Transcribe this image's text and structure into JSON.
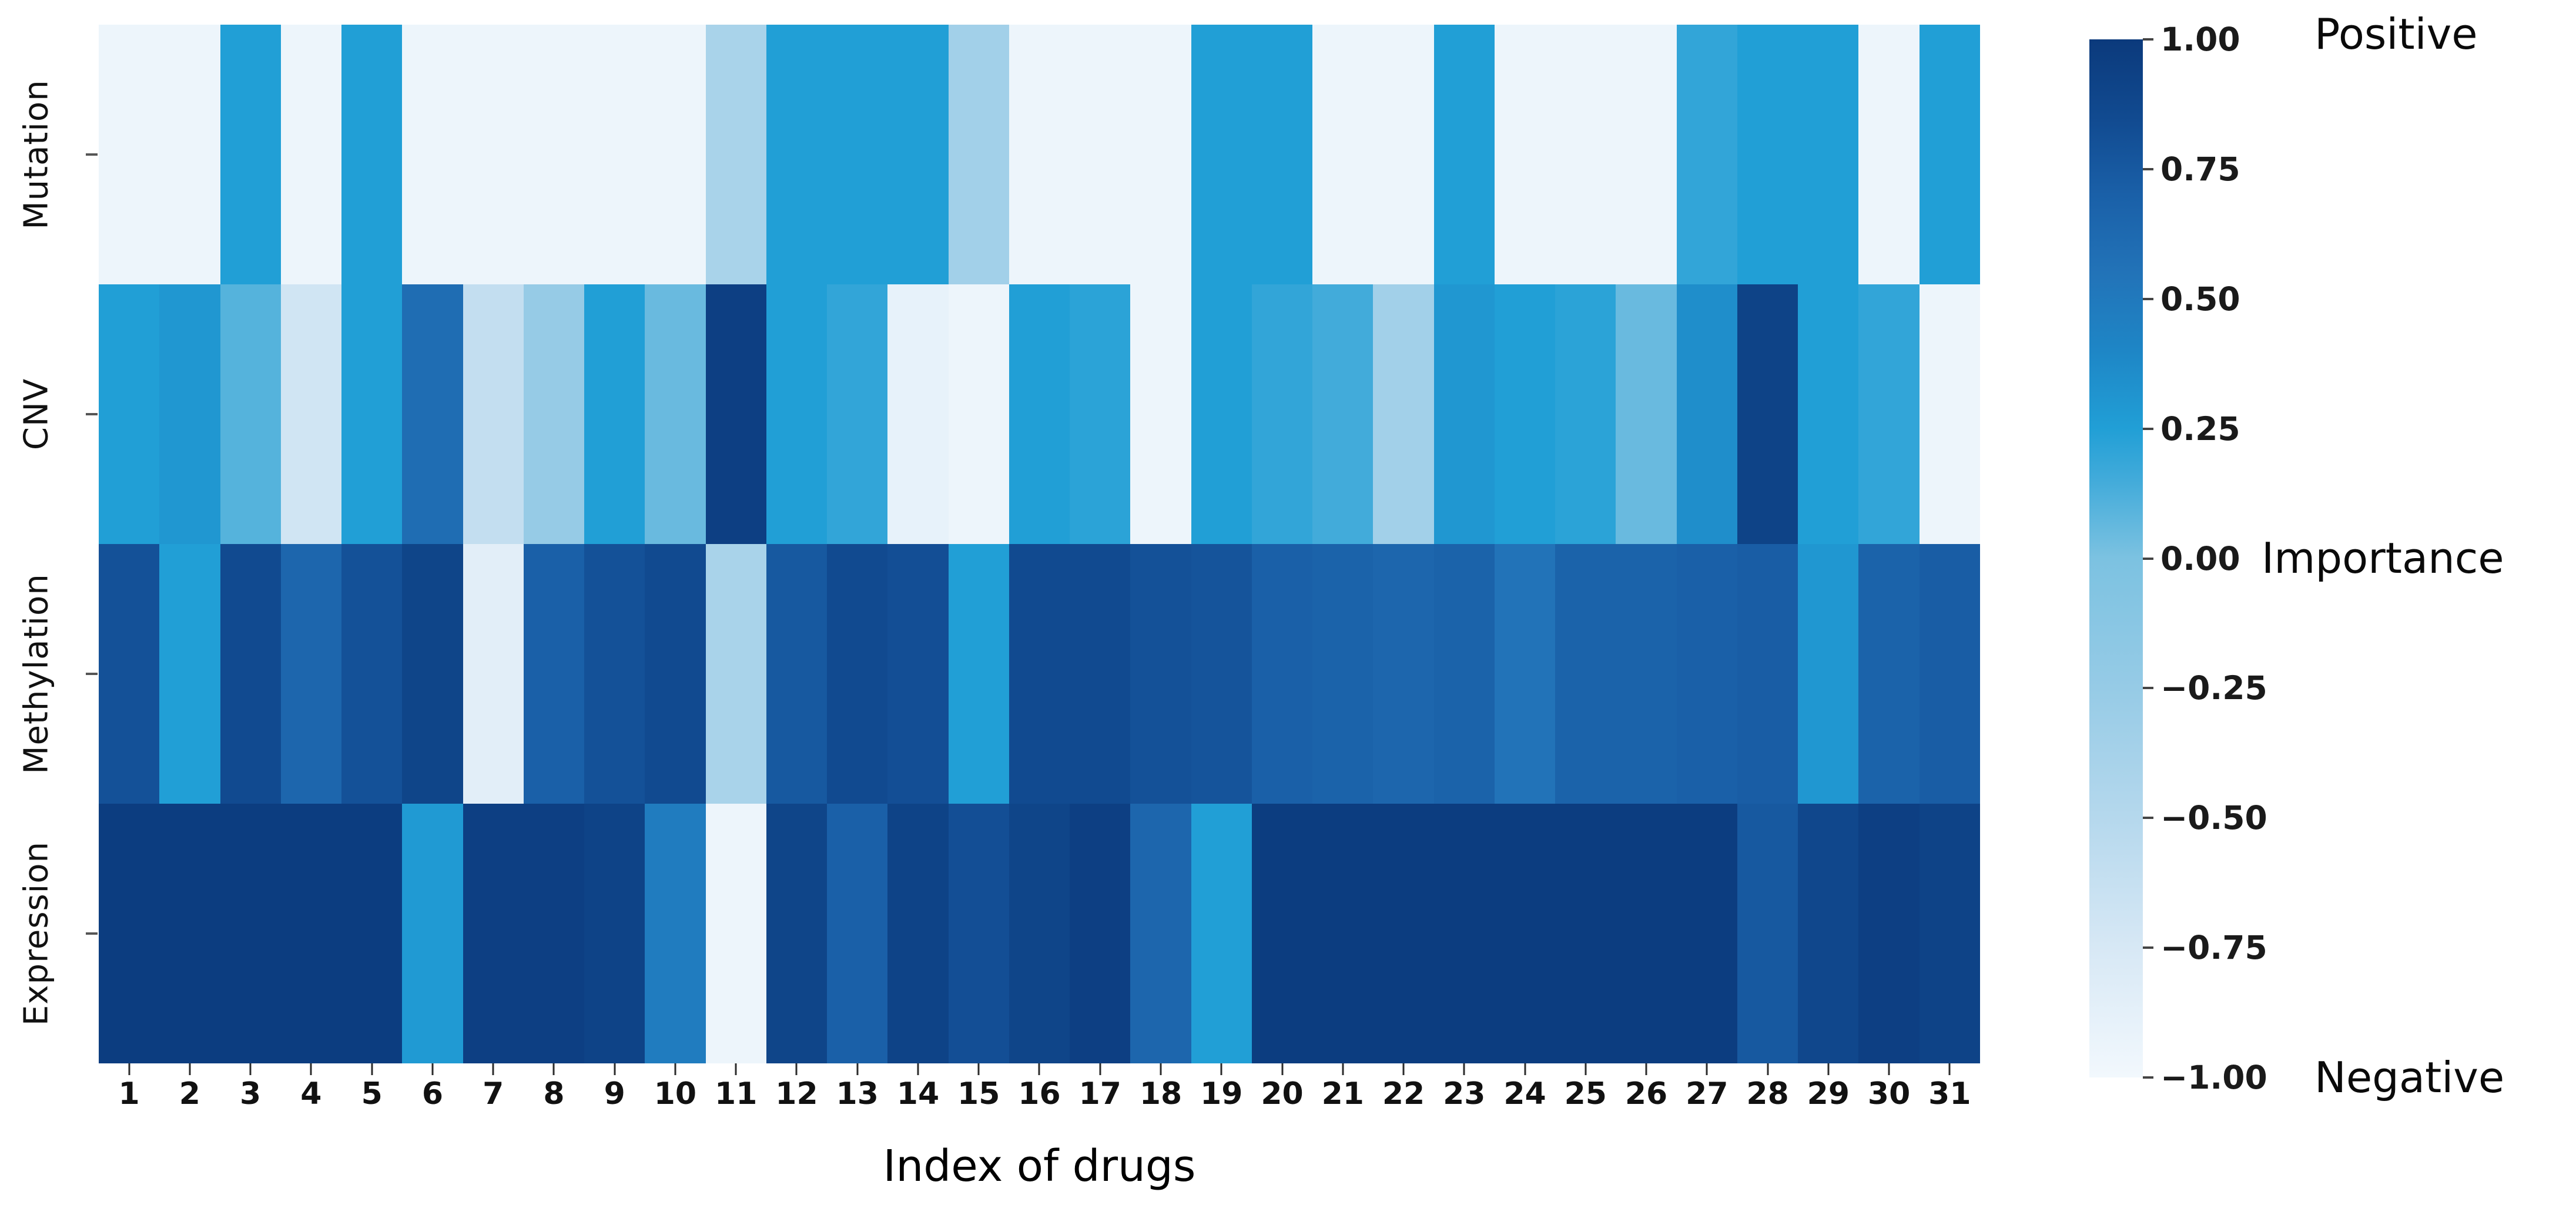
{
  "chart_data": {
    "type": "heatmap",
    "title": "",
    "xlabel": "Index of drugs",
    "ylabel": "",
    "columns": [
      "1",
      "2",
      "3",
      "4",
      "5",
      "6",
      "7",
      "8",
      "9",
      "10",
      "11",
      "12",
      "13",
      "14",
      "15",
      "16",
      "17",
      "18",
      "19",
      "20",
      "21",
      "22",
      "23",
      "24",
      "25",
      "26",
      "27",
      "28",
      "29",
      "30",
      "31"
    ],
    "rows": [
      "Mutation",
      "CNV",
      "Methylation",
      "Expression"
    ],
    "vmin": -1.0,
    "vmax": 1.0,
    "grid": false,
    "series": [
      {
        "name": "Mutation",
        "values": [
          -0.95,
          -0.95,
          0.25,
          -0.95,
          0.25,
          -0.95,
          -0.95,
          -0.95,
          -0.95,
          -0.95,
          -0.4,
          0.25,
          0.25,
          0.25,
          -0.35,
          -0.95,
          -0.95,
          -0.95,
          0.25,
          0.25,
          -0.95,
          -0.95,
          0.25,
          -0.95,
          -0.95,
          -0.95,
          0.2,
          0.25,
          0.25,
          -0.95,
          0.25
        ]
      },
      {
        "name": "CNV",
        "values": [
          0.25,
          0.3,
          0.1,
          -0.7,
          0.25,
          0.6,
          -0.6,
          -0.25,
          0.25,
          0.05,
          0.95,
          0.25,
          0.2,
          -0.9,
          -0.95,
          0.25,
          0.22,
          -0.95,
          0.25,
          0.2,
          0.15,
          -0.35,
          0.3,
          0.25,
          0.22,
          0.05,
          0.35,
          0.92,
          0.25,
          0.2,
          -0.95
        ]
      },
      {
        "name": "Methylation",
        "values": [
          0.8,
          0.25,
          0.85,
          0.65,
          0.8,
          0.9,
          -0.85,
          0.7,
          0.8,
          0.85,
          -0.4,
          0.75,
          0.85,
          0.82,
          0.25,
          0.85,
          0.85,
          0.8,
          0.78,
          0.7,
          0.68,
          0.65,
          0.68,
          0.55,
          0.68,
          0.68,
          0.7,
          0.72,
          0.3,
          0.68,
          0.72
        ]
      },
      {
        "name": "Expression",
        "values": [
          0.97,
          0.97,
          0.97,
          0.97,
          0.97,
          0.28,
          0.95,
          0.95,
          0.92,
          0.48,
          -0.95,
          0.9,
          0.7,
          0.92,
          0.82,
          0.9,
          0.95,
          0.65,
          0.25,
          0.97,
          0.97,
          0.97,
          0.97,
          0.97,
          0.97,
          0.97,
          0.97,
          0.75,
          0.88,
          0.95,
          0.92
        ]
      }
    ],
    "colormap_anchors": [
      [
        -1.0,
        "#f2f8fd"
      ],
      [
        -0.75,
        "#d7e8f5"
      ],
      [
        -0.5,
        "#b5d8ed"
      ],
      [
        -0.25,
        "#96cbe6"
      ],
      [
        0.0,
        "#7cc2e1"
      ],
      [
        0.15,
        "#42abda"
      ],
      [
        0.25,
        "#219fd6"
      ],
      [
        0.4,
        "#1e86c6"
      ],
      [
        0.55,
        "#2273b8"
      ],
      [
        0.7,
        "#1a60a8"
      ],
      [
        0.85,
        "#114a90"
      ],
      [
        1.0,
        "#0b3a7c"
      ]
    ],
    "colorbar": {
      "tick_values": [
        1.0,
        0.75,
        0.5,
        0.25,
        0.0,
        -0.25,
        -0.5,
        -0.75,
        -1.0
      ],
      "tick_labels": [
        "1.00",
        "0.75",
        "0.50",
        "0.25",
        "0.00",
        "−0.25",
        "−0.50",
        "−0.75",
        "−1.00"
      ],
      "top_label": "Positive",
      "mid_label": "Importance",
      "bottom_label": "Negative"
    }
  },
  "axis": {
    "x_title": "Index of drugs"
  }
}
